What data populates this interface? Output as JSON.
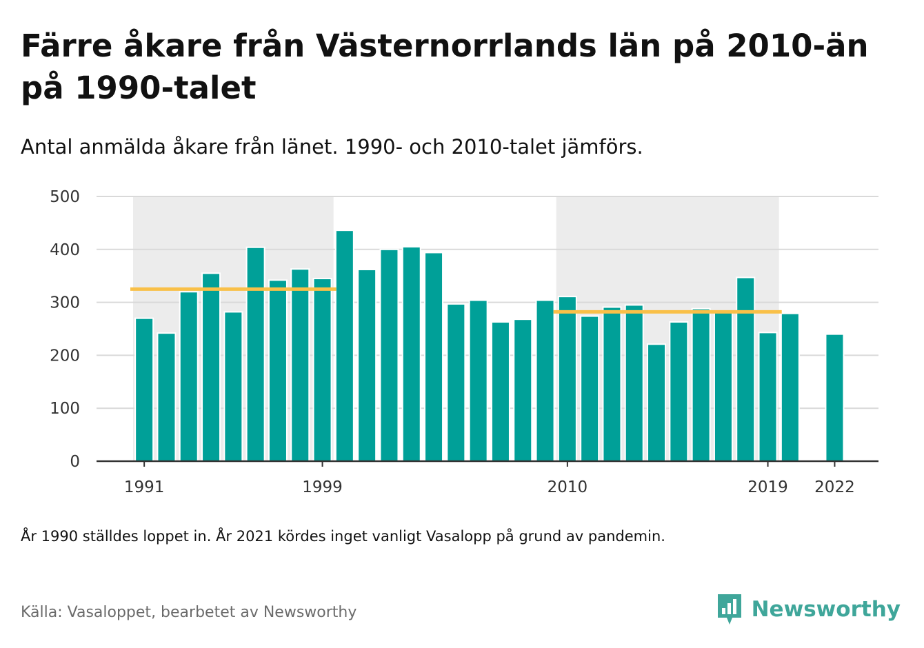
{
  "title": "Färre åkare från Västernorrlands län på 2010-än på 1990-talet",
  "subtitle": "Antal anmälda åkare från länet. 1990- och 2010-talet jämförs.",
  "note": "År 1990 ställdes loppet in. År 2021 kördes inget vanligt Vasalopp på grund av pandemin.",
  "source": "Källa: Vasaloppet, bearbetet av Newsworthy",
  "logo": {
    "text": "Newsworthy",
    "icon": "newsworthy-logo-icon"
  },
  "colors": {
    "bar": "#00a098",
    "average_line": "#f9c048",
    "decade_shade": "#ececec",
    "gridline": "#d9d9d9",
    "axis": "#333333",
    "brand": "#3fa69a"
  },
  "chart_data": {
    "type": "bar",
    "x": [
      1991,
      1992,
      1993,
      1994,
      1995,
      1996,
      1997,
      1998,
      1999,
      2000,
      2001,
      2002,
      2003,
      2004,
      2005,
      2006,
      2007,
      2008,
      2009,
      2010,
      2011,
      2012,
      2013,
      2014,
      2015,
      2016,
      2017,
      2018,
      2019,
      2020,
      2022
    ],
    "values": [
      270,
      242,
      320,
      355,
      282,
      404,
      342,
      363,
      345,
      436,
      362,
      400,
      405,
      394,
      297,
      304,
      263,
      268,
      304,
      311,
      274,
      291,
      295,
      221,
      263,
      288,
      283,
      347,
      243,
      279,
      240
    ],
    "ylim": [
      0,
      500
    ],
    "yticks": [
      0,
      100,
      200,
      300,
      400,
      500
    ],
    "xticks": [
      "1991",
      "1999",
      "2010",
      "2019",
      "2022"
    ],
    "highlight_periods": [
      {
        "from": 1991,
        "to": 1999,
        "average": 325
      },
      {
        "from": 2010,
        "to": 2019,
        "average": 282
      }
    ],
    "xlabel": "",
    "ylabel": "",
    "grid": true
  }
}
